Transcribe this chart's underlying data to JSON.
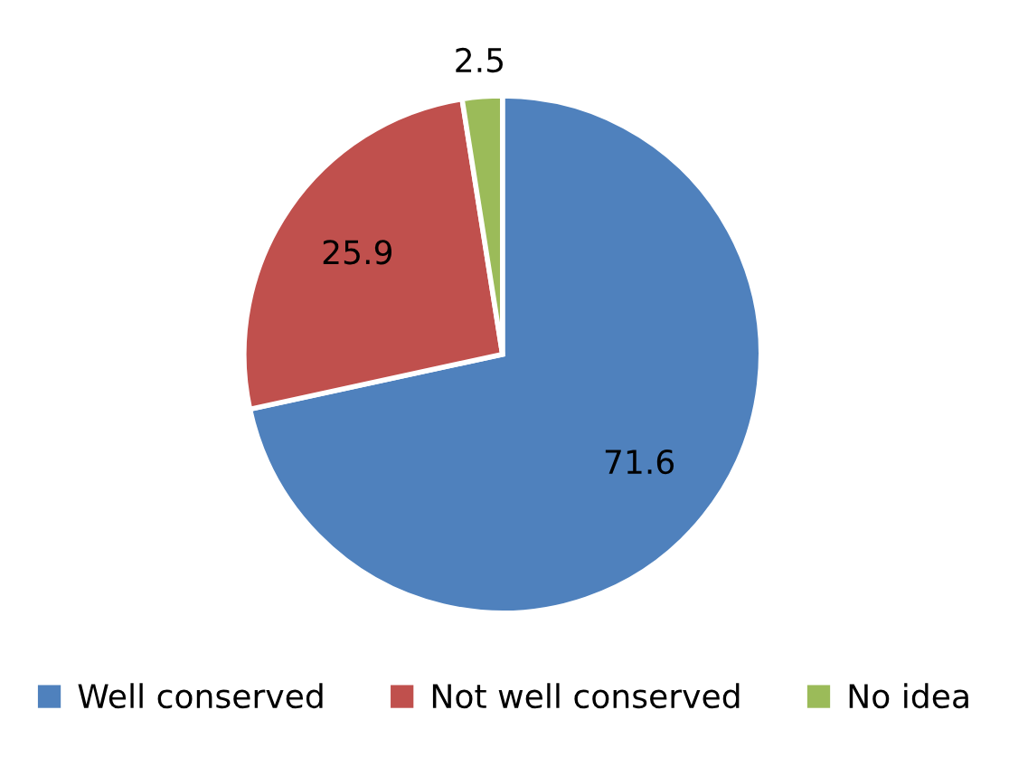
{
  "chart_data": {
    "type": "pie",
    "categories": [
      "Well conserved",
      "Not well conserved",
      "No idea"
    ],
    "values": [
      71.6,
      25.9,
      2.5
    ],
    "colors": [
      "#4f81bd",
      "#c0504d",
      "#9bbb59"
    ],
    "data_labels": true,
    "legend": "bottom"
  }
}
